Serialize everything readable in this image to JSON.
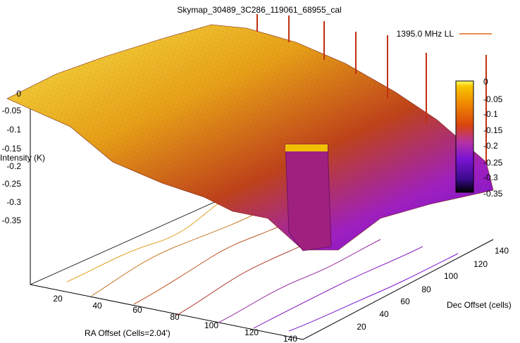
{
  "chart_data": {
    "type": "surface",
    "title": "Skymap_30489_3C286_119061_68955_cal",
    "xlabel": "RA Offset (Cells=2.04')",
    "ylabel": "Dec Offset (cells)",
    "zlabel": "Intensity (K)",
    "legend": {
      "label": "1395.0 MHz LL",
      "color": "#e06a17",
      "position": "top-right"
    },
    "x_ticks": [
      "20",
      "40",
      "60",
      "80",
      "100",
      "120",
      "140"
    ],
    "y_ticks": [
      "20",
      "40",
      "60",
      "80",
      "100",
      "120",
      "140"
    ],
    "z_ticks": [
      "0",
      "-0.05",
      "-0.1",
      "-0.15",
      "-0.2",
      "-0.25",
      "-0.3",
      "-0.35"
    ],
    "x_range": [
      0,
      150
    ],
    "y_range": [
      0,
      150
    ],
    "z_range": [
      -0.38,
      0.0
    ],
    "colorbar": {
      "ticks": [
        "0",
        "-0.05",
        "-0.1",
        "-0.15",
        "-0.2",
        "-0.25",
        "-0.3",
        "-0.35"
      ],
      "range": [
        -0.37,
        0.0
      ],
      "palette": [
        "#000000",
        "#3b0a8c",
        "#7a14d4",
        "#b532a4",
        "#d9440f",
        "#f08a00",
        "#f7c400",
        "#ffff66"
      ]
    },
    "surface_levels": [
      {
        "x": 0,
        "y": 150,
        "z": 0.0
      },
      {
        "x": 20,
        "y": 140,
        "z": -0.01
      },
      {
        "x": 40,
        "y": 120,
        "z": -0.05
      },
      {
        "x": 60,
        "y": 100,
        "z": -0.1
      },
      {
        "x": 80,
        "y": 80,
        "z": -0.15
      },
      {
        "x": 100,
        "y": 60,
        "z": -0.22
      },
      {
        "x": 120,
        "y": 40,
        "z": -0.28
      },
      {
        "x": 140,
        "y": 10,
        "z": -0.33
      }
    ]
  }
}
